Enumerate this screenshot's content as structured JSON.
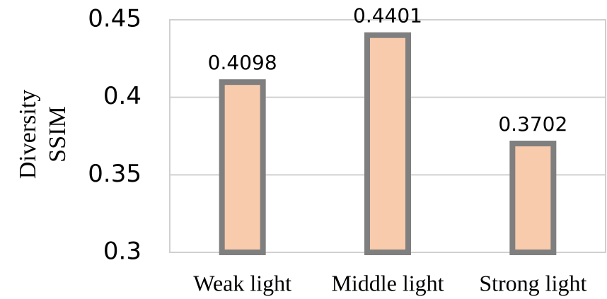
{
  "chart_data": {
    "type": "bar",
    "ylabel": [
      "Diversity",
      "SSIM"
    ],
    "categories": [
      "Weak light",
      "Middle light",
      "Strong light"
    ],
    "values": [
      0.4098,
      0.4401,
      0.3702
    ],
    "color": "#f8cbad",
    "edge_color": "#7f7f7f",
    "ylim": [
      0.3,
      0.45
    ],
    "yticks": [
      0.3,
      0.35,
      0.4,
      0.45
    ],
    "grid": true,
    "show_value_labels": true
  }
}
